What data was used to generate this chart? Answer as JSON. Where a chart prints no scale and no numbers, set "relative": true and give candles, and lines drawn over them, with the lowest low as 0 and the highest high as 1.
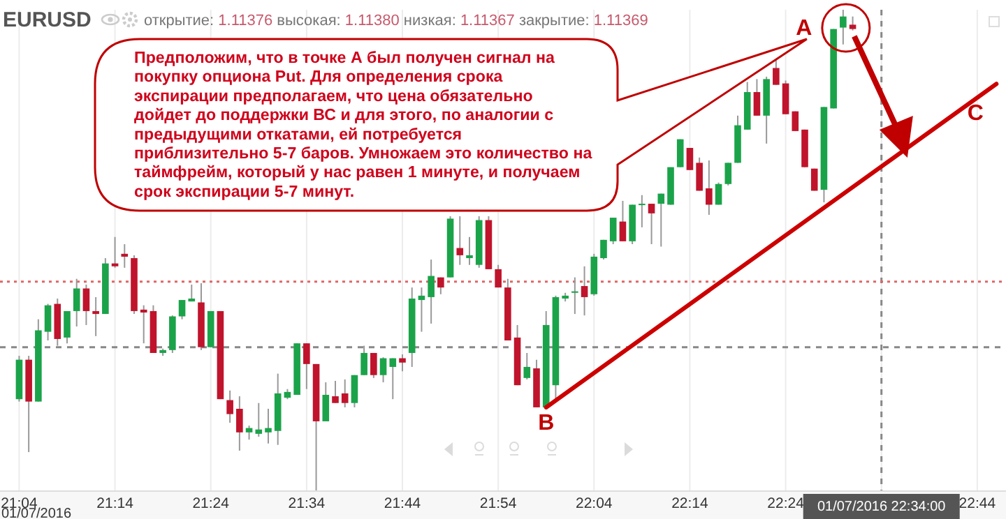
{
  "chart_data": {
    "type": "candlestick",
    "title": "EURUSD",
    "subtitle": "открытие: 1.11376 высокая: 1.11380 низкая: 1.11367 закрытие: 1.11369",
    "relative": true,
    "grid": "x",
    "x": [
      "2016-07-01T21:04",
      "2016-07-01T21:05",
      "2016-07-01T21:06",
      "2016-07-01T21:07",
      "2016-07-01T21:08",
      "2016-07-01T21:09",
      "2016-07-01T21:10",
      "2016-07-01T21:11",
      "2016-07-01T21:12",
      "2016-07-01T21:13",
      "2016-07-01T21:14",
      "2016-07-01T21:15",
      "2016-07-01T21:16",
      "2016-07-01T21:17",
      "2016-07-01T21:18",
      "2016-07-01T21:19",
      "2016-07-01T21:20",
      "2016-07-01T21:21",
      "2016-07-01T21:22",
      "2016-07-01T21:23",
      "2016-07-01T21:24",
      "2016-07-01T21:25",
      "2016-07-01T21:26",
      "2016-07-01T21:27",
      "2016-07-01T21:28",
      "2016-07-01T21:29",
      "2016-07-01T21:30",
      "2016-07-01T21:31",
      "2016-07-01T21:32",
      "2016-07-01T21:33",
      "2016-07-01T21:34",
      "2016-07-01T21:35",
      "2016-07-01T21:36",
      "2016-07-01T21:37",
      "2016-07-01T21:38",
      "2016-07-01T21:39",
      "2016-07-01T21:40",
      "2016-07-01T21:41",
      "2016-07-01T21:42",
      "2016-07-01T21:43",
      "2016-07-01T21:44",
      "2016-07-01T21:45",
      "2016-07-01T21:46",
      "2016-07-01T21:47",
      "2016-07-01T21:48",
      "2016-07-01T21:49",
      "2016-07-01T21:50",
      "2016-07-01T21:51",
      "2016-07-01T21:52",
      "2016-07-01T21:53",
      "2016-07-01T21:54",
      "2016-07-01T21:55",
      "2016-07-01T21:56",
      "2016-07-01T21:57",
      "2016-07-01T21:58",
      "2016-07-01T21:59",
      "2016-07-01T22:00",
      "2016-07-01T22:01",
      "2016-07-01T22:02",
      "2016-07-01T22:03",
      "2016-07-01T22:04",
      "2016-07-01T22:05",
      "2016-07-01T22:06",
      "2016-07-01T22:07",
      "2016-07-01T22:08",
      "2016-07-01T22:09",
      "2016-07-01T22:10",
      "2016-07-01T22:11",
      "2016-07-01T22:12",
      "2016-07-01T22:13",
      "2016-07-01T22:14",
      "2016-07-01T22:15",
      "2016-07-01T22:16",
      "2016-07-01T22:17",
      "2016-07-01T22:18",
      "2016-07-01T22:19",
      "2016-07-01T22:20",
      "2016-07-01T22:21",
      "2016-07-01T22:22",
      "2016-07-01T22:23",
      "2016-07-01T22:24",
      "2016-07-01T22:25",
      "2016-07-01T22:26",
      "2016-07-01T22:27",
      "2016-07-01T22:28",
      "2016-07-01T22:29",
      "2016-07-01T22:30",
      "2016-07-01T22:31"
    ],
    "ohlc": [
      [
        0.191,
        0.281,
        0.186,
        0.273
      ],
      [
        0.273,
        0.281,
        0.081,
        0.186
      ],
      [
        0.186,
        0.357,
        0.186,
        0.334
      ],
      [
        0.331,
        0.389,
        0.313,
        0.386
      ],
      [
        0.389,
        0.4,
        0.302,
        0.316
      ],
      [
        0.319,
        0.374,
        0.307,
        0.374
      ],
      [
        0.374,
        0.441,
        0.342,
        0.421
      ],
      [
        0.421,
        0.429,
        0.345,
        0.374
      ],
      [
        0.374,
        0.403,
        0.322,
        0.368
      ],
      [
        0.368,
        0.484,
        0.368,
        0.473
      ],
      [
        0.473,
        0.528,
        0.464,
        0.467
      ],
      [
        0.493,
        0.513,
        0.464,
        0.487
      ],
      [
        0.484,
        0.49,
        0.368,
        0.374
      ],
      [
        0.377,
        0.386,
        0.307,
        0.371
      ],
      [
        0.374,
        0.386,
        0.287,
        0.287
      ],
      [
        0.287,
        0.296,
        0.281,
        0.293
      ],
      [
        0.293,
        0.365,
        0.287,
        0.363
      ],
      [
        0.363,
        0.397,
        0.357,
        0.397
      ],
      [
        0.394,
        0.429,
        0.394,
        0.4
      ],
      [
        0.392,
        0.432,
        0.293,
        0.299
      ],
      [
        0.299,
        0.374,
        0.299,
        0.374
      ],
      [
        0.374,
        0.374,
        0.191,
        0.191
      ],
      [
        0.189,
        0.209,
        0.142,
        0.16
      ],
      [
        0.171,
        0.197,
        0.084,
        0.122
      ],
      [
        0.122,
        0.136,
        0.107,
        0.131
      ],
      [
        0.119,
        0.183,
        0.113,
        0.128
      ],
      [
        0.122,
        0.171,
        0.099,
        0.131
      ],
      [
        0.125,
        0.244,
        0.096,
        0.203
      ],
      [
        0.194,
        0.212,
        0.191,
        0.206
      ],
      [
        0.2,
        0.307,
        0.2,
        0.307
      ],
      [
        0.307,
        0.307,
        0.212,
        0.264
      ],
      [
        0.264,
        0.264,
        0,
        0.145
      ],
      [
        0.145,
        0.226,
        0.145,
        0.2
      ],
      [
        0.197,
        0.229,
        0.183,
        0.183
      ],
      [
        0.203,
        0.232,
        0.174,
        0.183
      ],
      [
        0.183,
        0.241,
        0.174,
        0.241
      ],
      [
        0.241,
        0.302,
        0.241,
        0.287
      ],
      [
        0.287,
        0.287,
        0.235,
        0.241
      ],
      [
        0.241,
        0.278,
        0.226,
        0.276
      ],
      [
        0.258,
        0.276,
        0.191,
        0.276
      ],
      [
        0.276,
        0.284,
        0.249,
        0.267
      ],
      [
        0.287,
        0.423,
        0.258,
        0.4
      ],
      [
        0.397,
        0.423,
        0.331,
        0.406
      ],
      [
        0.403,
        0.481,
        0.348,
        0.447
      ],
      [
        0.444,
        0.444,
        0.409,
        0.423
      ],
      [
        0.444,
        0.571,
        0.444,
        0.566
      ],
      [
        0.505,
        0.571,
        0.47,
        0.49
      ],
      [
        0.484,
        0.528,
        0.47,
        0.49
      ],
      [
        0.47,
        0.571,
        0.464,
        0.563
      ],
      [
        0.563,
        0.571,
        0.461,
        0.461
      ],
      [
        0.461,
        0.47,
        0.423,
        0.423
      ],
      [
        0.423,
        0.441,
        0.313,
        0.313
      ],
      [
        0.319,
        0.345,
        0.22,
        0.22
      ],
      [
        0.235,
        0.287,
        0.232,
        0.258
      ],
      [
        0.255,
        0.273,
        0.174,
        0.174
      ],
      [
        0.174,
        0.374,
        0.174,
        0.345
      ],
      [
        0.22,
        0.406,
        0.191,
        0.403
      ],
      [
        0.4,
        0.412,
        0.394,
        0.406
      ],
      [
        0.412,
        0.444,
        0.368,
        0.415
      ],
      [
        0.426,
        0.467,
        0.365,
        0.403
      ],
      [
        0.409,
        0.493,
        0.406,
        0.487
      ],
      [
        0.484,
        0.522,
        0.481,
        0.522
      ],
      [
        0.519,
        0.568,
        0.513,
        0.568
      ],
      [
        0.56,
        0.603,
        0.519,
        0.519
      ],
      [
        0.519,
        0.595,
        0.513,
        0.595
      ],
      [
        0.595,
        0.615,
        0.548,
        0.597
      ],
      [
        0.597,
        0.597,
        0.513,
        0.577
      ],
      [
        0.597,
        0.618,
        0.508,
        0.618
      ],
      [
        0.595,
        0.673,
        0.595,
        0.673
      ],
      [
        0.673,
        0.731,
        0.673,
        0.731
      ],
      [
        0.713,
        0.713,
        0.667,
        0.667
      ],
      [
        0.682,
        0.693,
        0.624,
        0.624
      ],
      [
        0.629,
        0.687,
        0.574,
        0.595
      ],
      [
        0.595,
        0.641,
        0.595,
        0.638
      ],
      [
        0.638,
        0.682,
        0.635,
        0.682
      ],
      [
        0.682,
        0.78,
        0.682,
        0.76
      ],
      [
        0.751,
        0.85,
        0.751,
        0.829
      ],
      [
        0.829,
        0.856,
        0.78,
        0.78
      ],
      [
        0.78,
        0.861,
        0.722,
        0.856
      ],
      [
        0.879,
        0.896,
        0.844,
        0.844
      ],
      [
        0.847,
        0.853,
        0.783,
        0.783
      ],
      [
        0.789,
        0.789,
        0.748,
        0.748
      ],
      [
        0.751,
        0.751,
        0.673,
        0.673
      ],
      [
        0.67,
        0.67,
        0.624,
        0.624
      ],
      [
        0.626,
        0.798,
        0.6,
        0.798
      ],
      [
        0.795,
        0.96,
        0.795,
        0.96
      ],
      [
        0.963,
        1,
        0.928,
        0.986
      ],
      [
        0.969,
        0.986,
        0.957,
        0.96
      ]
    ],
    "xlim": [
      "2016-07-01T21:02",
      "2016-07-01T22:47"
    ],
    "xticks": [
      {
        "value": "2016-07-01T21:04",
        "label": "21:04"
      },
      {
        "value": "2016-07-01T21:14",
        "label": "21:14"
      },
      {
        "value": "2016-07-01T21:24",
        "label": "21:24"
      },
      {
        "value": "2016-07-01T21:34",
        "label": "21:34"
      },
      {
        "value": "2016-07-01T21:44",
        "label": "21:44"
      },
      {
        "value": "2016-07-01T21:54",
        "label": "21:54"
      },
      {
        "value": "2016-07-01T22:04",
        "label": "22:04"
      },
      {
        "value": "2016-07-01T22:14",
        "label": "22:14"
      },
      {
        "value": "2016-07-01T22:24",
        "label": "22:24"
      },
      {
        "value": "2016-07-01T22:34",
        "label": null
      },
      {
        "value": "2016-07-01T22:44",
        "label": "22:44"
      }
    ],
    "series": [
      {
        "type": "line",
        "x": [
          "2016-07-01T21:59",
          "2016-07-01T22:46"
        ],
        "values": [
          0.174,
          0.846
        ],
        "color": "#cc0000"
      }
    ],
    "ref_lines": [
      {
        "axis": "x",
        "value": "2016-07-01T22:34",
        "color": "#888888",
        "line_style": "dashed"
      },
      {
        "axis": "y",
        "value": 0.299,
        "color": "#888888",
        "line_style": "dashed"
      },
      {
        "axis": "y",
        "value": 0.435,
        "color": "#e06666",
        "line_style": "dotted"
      }
    ],
    "annotations": [
      "Предположим, что в точке А был получен сигнал на\nпокупку опциона Put. Для определения срока\nэкспирации предполагаем, что цена обязательно\nдойдет до поддержки ВС и для этого, по аналогии с\nпредыдущими откатами, ей потребуется\nприблизительно 5-7 баров. Умножаем это количество на\nтаймфрейм, который у нас равен 1 минуте, и получаем\nсрок экспирации 5-7 минут.",
      "A",
      {
        "text": "B",
        "x": "2016-07-01T21:59",
        "y": 0.174
      },
      {
        "text": "C",
        "x": "2016-07-01T22:46",
        "y": 0.846
      },
      "01/07/2016",
      "01/07/2016 22:34:00"
    ]
  }
}
